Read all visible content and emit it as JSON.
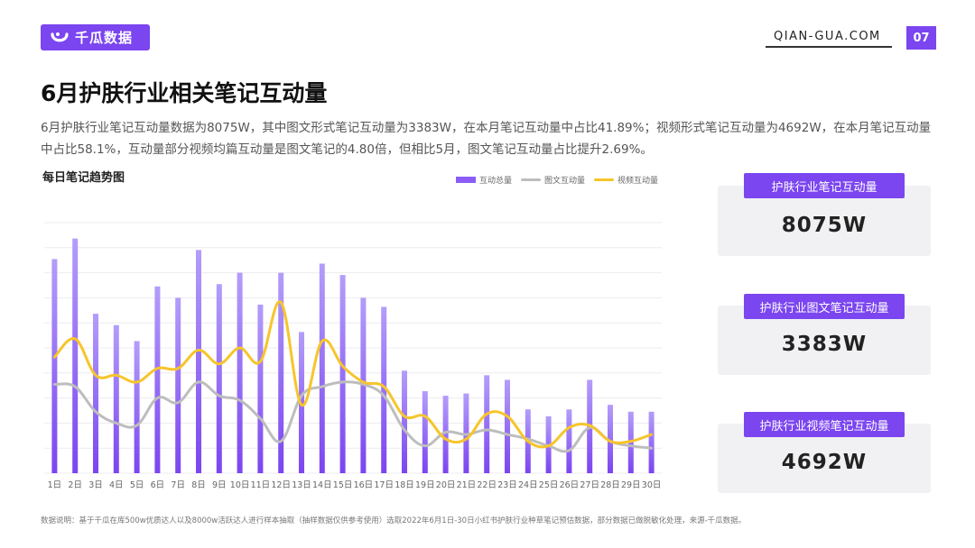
{
  "header": {
    "logo_text": "千瓜数据",
    "site": "QIAN-GUA.COM",
    "page_number": "07",
    "brand_color": "#7b45f0"
  },
  "title": "6月护肤行业相关笔记互动量",
  "description": "6月护肤行业笔记互动量数据为8075W，其中图文形式笔记互动量为3383W，在本月笔记互动量中占比41.89%；视频形式笔记互动量为4692W，在本月笔记互动量中占比58.1%，互动量部分视频均篇互动量是图文笔记的4.80倍，但相比5月，图文笔记互动量占比提升2.69%。",
  "chart_title": "每日笔记趋势图",
  "cards": [
    {
      "label": "护肤行业笔记互动量",
      "value": "8075W"
    },
    {
      "label": "护肤行业图文笔记互动量",
      "value": "3383W"
    },
    {
      "label": "护肤行业视频笔记互动量",
      "value": "4692W"
    }
  ],
  "footnote": "数据说明：基于千瓜在库500w优质达人以及8000w活跃达人进行样本抽取（抽样数据仅供参考使用）选取2022年6月1日-30日小红书护肤行业种草笔记预估数据，部分数据已做脱敏化处理，来源-千瓜数据。",
  "chart_data": {
    "type": "bar",
    "categories": [
      "1日",
      "2日",
      "3日",
      "4日",
      "5日",
      "6日",
      "7日",
      "8日",
      "9日",
      "10日",
      "11日",
      "12日",
      "13日",
      "14日",
      "15日",
      "16日",
      "17日",
      "18日",
      "19日",
      "20日",
      "21日",
      "22日",
      "23日",
      "24日",
      "25日",
      "26日",
      "27日",
      "28日",
      "29日",
      "30日"
    ],
    "series": [
      {
        "name": "互动总量",
        "type": "bar",
        "color": "#8b5cf6",
        "values": [
          94,
          103,
          70,
          65,
          58,
          82,
          77,
          98,
          83,
          88,
          74,
          88,
          62,
          92,
          87,
          77,
          73,
          45,
          36,
          34,
          35,
          43,
          41,
          28,
          25,
          28,
          41,
          30,
          27,
          27
        ]
      },
      {
        "name": "图文互动量",
        "color": "#bdbdbd",
        "values": [
          39,
          38,
          27,
          22,
          21,
          33,
          31,
          40,
          34,
          32,
          24,
          14,
          34,
          38,
          40,
          39,
          34,
          19,
          12,
          18,
          17,
          19,
          17,
          15,
          12,
          10,
          20,
          14,
          12,
          11
        ]
      },
      {
        "name": "视频互动量",
        "color": "#f7c52b",
        "values": [
          51,
          59,
          43,
          43,
          40,
          46,
          46,
          54,
          48,
          55,
          49,
          75,
          30,
          58,
          47,
          40,
          38,
          25,
          25,
          15,
          15,
          26,
          25,
          14,
          12,
          20,
          21,
          14,
          14,
          17
        ]
      }
    ],
    "ylim": [
      0,
      110
    ],
    "grid": true,
    "legend": "top"
  }
}
